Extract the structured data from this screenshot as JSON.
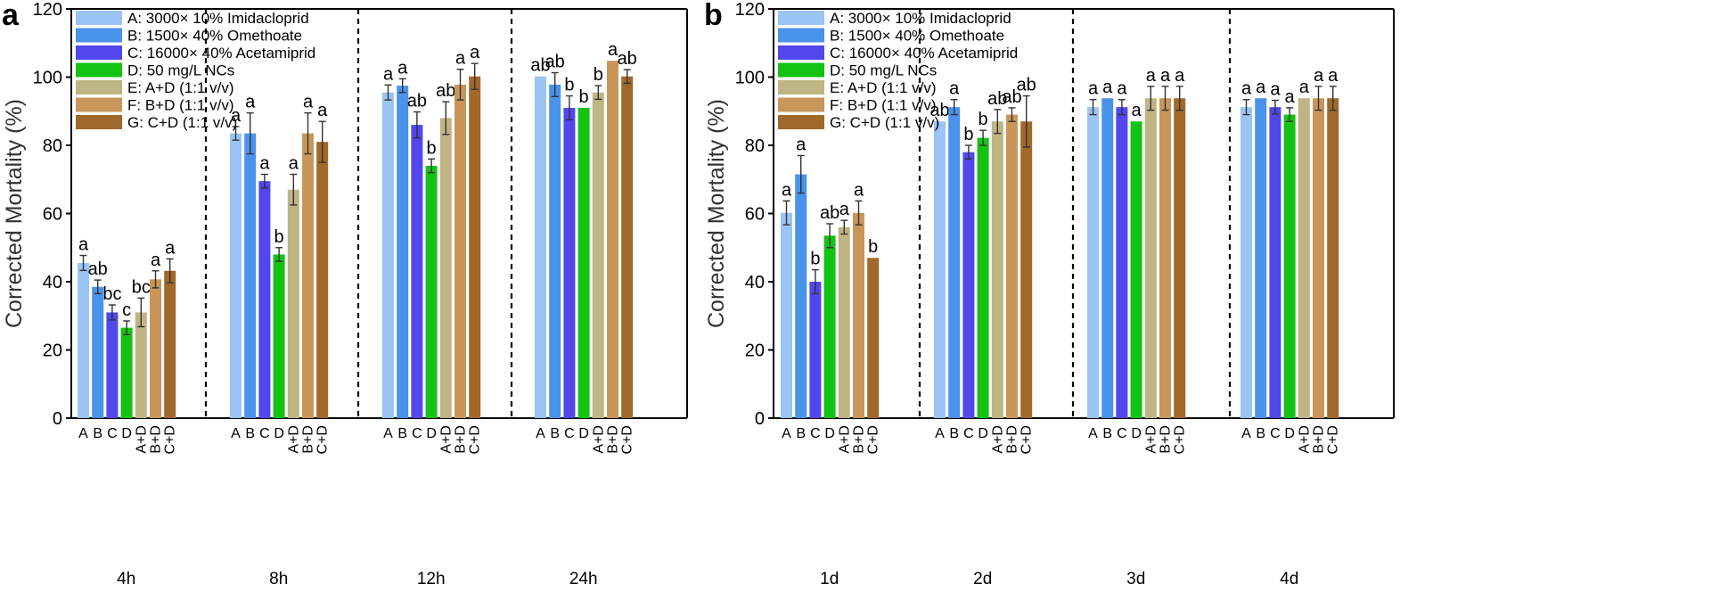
{
  "chart_data": [
    {
      "type": "bar",
      "panel_label": "a",
      "ylabel": "Corrected Mortality (%)",
      "ylim": [
        0,
        120
      ],
      "yticks": [
        "0",
        "20",
        "40",
        "60",
        "80",
        "100",
        "120"
      ],
      "groups": [
        "4h",
        "8h",
        "12h",
        "24h"
      ],
      "categories": [
        "A",
        "B",
        "C",
        "D",
        "A+D",
        "B+D",
        "C+D"
      ],
      "legend": [
        "A: 3000× 10% Imidacloprid",
        "B: 1500× 40% Omethoate",
        "C: 16000× 40% Acetamiprid",
        "D: 50 mg/L NCs",
        "E: A+D (1:1 v/v)",
        "F: B+D (1:1 v/v)",
        "G: C+D (1:1 v/v)"
      ],
      "legend_position": "top-left",
      "colors": [
        "#99c4f4",
        "#4a93ea",
        "#5147ea",
        "#13c213",
        "#bfb484",
        "#c9965a",
        "#a0682b"
      ],
      "values": [
        [
          45.5,
          38.5,
          31,
          26.5,
          31,
          40.7,
          43.2
        ],
        [
          83.5,
          83.5,
          69.5,
          48,
          67,
          83.5,
          81
        ],
        [
          95.5,
          97.5,
          86,
          74,
          88,
          97.8,
          100.2
        ],
        [
          100.2,
          97.8,
          91,
          91,
          95.5,
          104.8,
          100.2
        ]
      ],
      "errors": [
        [
          2.2,
          2,
          2.2,
          2,
          4.2,
          2.5,
          3.5
        ],
        [
          2,
          6,
          2,
          2,
          4.5,
          6,
          6
        ],
        [
          2.2,
          2,
          3.8,
          2,
          4.8,
          4.5,
          3.8
        ],
        [
          0,
          3.5,
          3.5,
          0,
          2,
          0,
          2
        ]
      ],
      "labels": [
        [
          "a",
          "ab",
          "bc",
          "c",
          "bc",
          "a",
          "a"
        ],
        [
          "a",
          "a",
          "a",
          "b",
          "a",
          "a",
          "a"
        ],
        [
          "a",
          "a",
          "ab",
          "b",
          "ab",
          "a",
          "a"
        ],
        [
          "ab",
          "ab",
          "b",
          "b",
          "b",
          "a",
          "ab"
        ]
      ]
    },
    {
      "type": "bar",
      "panel_label": "b",
      "ylabel": "Corrected Mortality (%)",
      "ylim": [
        0,
        120
      ],
      "yticks": [
        "0",
        "20",
        "40",
        "60",
        "80",
        "100",
        "120"
      ],
      "groups": [
        "1d",
        "2d",
        "3d",
        "4d"
      ],
      "categories": [
        "A",
        "B",
        "C",
        "D",
        "A+D",
        "B+D",
        "C+D"
      ],
      "legend": [
        "A: 3000× 10% Imidacloprid",
        "B: 1500× 40% Omethoate",
        "C: 16000× 40% Acetamiprid",
        "D: 50 mg/L NCs",
        "E: A+D (1:1 v/v)",
        "F: B+D (1:1 v/v)",
        "G: C+D (1:1 v/v)"
      ],
      "legend_position": "top-left",
      "colors": [
        "#99c4f4",
        "#4a93ea",
        "#5147ea",
        "#13c213",
        "#bfb484",
        "#c9965a",
        "#a0682b"
      ],
      "values": [
        [
          60.2,
          71.5,
          40,
          53.5,
          56,
          60.2,
          47
        ],
        [
          87,
          91.2,
          78,
          82.2,
          87,
          89,
          87
        ],
        [
          91.2,
          93.8,
          91.2,
          87,
          93.8,
          93.8,
          93.8
        ],
        [
          91.2,
          93.8,
          91.2,
          89,
          93.8,
          93.8,
          93.8
        ]
      ],
      "errors": [
        [
          3.5,
          5.5,
          3.5,
          3.5,
          2,
          3.5,
          0
        ],
        [
          0,
          2.2,
          2,
          2.2,
          3.5,
          2,
          7.5
        ],
        [
          2.2,
          0,
          2.2,
          0,
          3.5,
          3.5,
          3.5
        ],
        [
          2.2,
          0,
          2,
          2,
          0,
          3.5,
          3.5
        ]
      ],
      "labels": [
        [
          "a",
          "a",
          "b",
          "ab",
          "a",
          "a",
          "b"
        ],
        [
          "ab",
          "a",
          "b",
          "b",
          "ab",
          "ab",
          "ab"
        ],
        [
          "a",
          "a",
          "a",
          "a",
          "a",
          "a",
          "a"
        ],
        [
          "a",
          "a",
          "a",
          "a",
          "a",
          "a",
          "a"
        ]
      ]
    }
  ]
}
